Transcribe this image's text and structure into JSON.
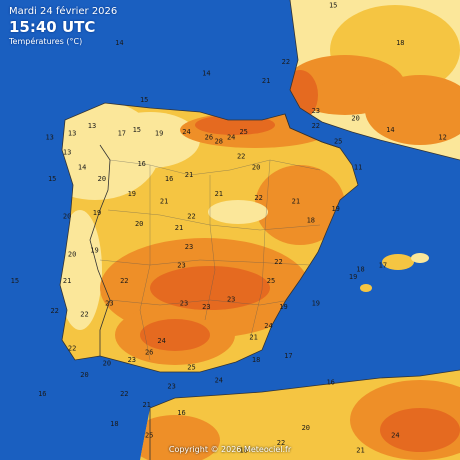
{
  "header": {
    "date": "Mardi 24 février 2026",
    "time": "15:40 UTC",
    "subtitle": "Températures (°C)"
  },
  "copyright": "Copyright © 2026 Meteociel.fr",
  "colors": {
    "sea": "#1a5fc0",
    "t_pale": "#fbe79a",
    "t_yellow": "#f5c542",
    "t_orange": "#ee8f28",
    "t_deep": "#e56a20",
    "t_red": "#dd4a1c",
    "border": "#333333",
    "label": "#1a1a1a"
  },
  "stations": [
    {
      "t": "13",
      "lon": -9.3,
      "lat": 43.3
    },
    {
      "t": "13",
      "lon": -8.4,
      "lat": 43.4
    },
    {
      "t": "13",
      "lon": -7.6,
      "lat": 43.6
    },
    {
      "t": "13",
      "lon": -8.6,
      "lat": 42.9
    },
    {
      "t": "14",
      "lon": -8.0,
      "lat": 42.5
    },
    {
      "t": "20",
      "lon": -7.2,
      "lat": 42.2
    },
    {
      "t": "17",
      "lon": -6.4,
      "lat": 43.4
    },
    {
      "t": "15",
      "lon": -5.8,
      "lat": 43.5
    },
    {
      "t": "19",
      "lon": -4.9,
      "lat": 43.4
    },
    {
      "t": "24",
      "lon": -3.8,
      "lat": 43.45
    },
    {
      "t": "26",
      "lon": -2.9,
      "lat": 43.3
    },
    {
      "t": "28",
      "lon": -2.5,
      "lat": 43.2
    },
    {
      "t": "24",
      "lon": -2.0,
      "lat": 43.3
    },
    {
      "t": "25",
      "lon": -1.5,
      "lat": 43.45
    },
    {
      "t": "22",
      "lon": -1.6,
      "lat": 42.8
    },
    {
      "t": "20",
      "lon": -1.0,
      "lat": 42.5
    },
    {
      "t": "16",
      "lon": -5.6,
      "lat": 42.6
    },
    {
      "t": "16",
      "lon": -4.5,
      "lat": 42.2
    },
    {
      "t": "21",
      "lon": -3.7,
      "lat": 42.3
    },
    {
      "t": "19",
      "lon": -6.0,
      "lat": 41.8
    },
    {
      "t": "21",
      "lon": -4.7,
      "lat": 41.6
    },
    {
      "t": "22",
      "lon": -3.6,
      "lat": 41.2
    },
    {
      "t": "21",
      "lon": -2.5,
      "lat": 41.8
    },
    {
      "t": "22",
      "lon": -0.9,
      "lat": 41.7
    },
    {
      "t": "21",
      "lon": 0.6,
      "lat": 41.6
    },
    {
      "t": "19",
      "lon": 2.2,
      "lat": 41.4
    },
    {
      "t": "18",
      "lon": 1.2,
      "lat": 41.1
    },
    {
      "t": "22",
      "lon": -0.1,
      "lat": 40.0
    },
    {
      "t": "25",
      "lon": -0.4,
      "lat": 39.5
    },
    {
      "t": "24",
      "lon": -0.5,
      "lat": 38.3
    },
    {
      "t": "19",
      "lon": 0.1,
      "lat": 38.8
    },
    {
      "t": "21",
      "lon": -1.1,
      "lat": 38.0
    },
    {
      "t": "23",
      "lon": -2.0,
      "lat": 39.0
    },
    {
      "t": "23",
      "lon": -3.7,
      "lat": 40.4
    },
    {
      "t": "21",
      "lon": -4.1,
      "lat": 40.9
    },
    {
      "t": "20",
      "lon": -5.7,
      "lat": 41.0
    },
    {
      "t": "22",
      "lon": -6.3,
      "lat": 39.5
    },
    {
      "t": "23",
      "lon": -4.0,
      "lat": 39.9
    },
    {
      "t": "23",
      "lon": -3.9,
      "lat": 38.9
    },
    {
      "t": "23",
      "lon": -3.0,
      "lat": 38.8
    },
    {
      "t": "24",
      "lon": -4.8,
      "lat": 37.9
    },
    {
      "t": "26",
      "lon": -5.3,
      "lat": 37.6
    },
    {
      "t": "23",
      "lon": -6.0,
      "lat": 37.4
    },
    {
      "t": "25",
      "lon": -3.6,
      "lat": 37.2
    },
    {
      "t": "24",
      "lon": -2.5,
      "lat": 36.85
    },
    {
      "t": "23",
      "lon": -4.4,
      "lat": 36.7
    },
    {
      "t": "22",
      "lon": -6.3,
      "lat": 36.5
    },
    {
      "t": "21",
      "lon": -5.4,
      "lat": 36.2
    },
    {
      "t": "20",
      "lon": -7.0,
      "lat": 37.3
    },
    {
      "t": "23",
      "lon": -6.9,
      "lat": 38.9
    },
    {
      "t": "22",
      "lon": -7.9,
      "lat": 38.6
    },
    {
      "t": "22",
      "lon": -8.4,
      "lat": 37.7
    },
    {
      "t": "20",
      "lon": -7.9,
      "lat": 37.0
    },
    {
      "t": "22",
      "lon": -9.1,
      "lat": 38.7
    },
    {
      "t": "21",
      "lon": -8.6,
      "lat": 39.5
    },
    {
      "t": "20",
      "lon": -8.4,
      "lat": 40.2
    },
    {
      "t": "20",
      "lon": -8.6,
      "lat": 41.2
    },
    {
      "t": "19",
      "lon": -7.4,
      "lat": 41.3
    },
    {
      "t": "19",
      "lon": -7.5,
      "lat": 40.3
    },
    {
      "t": "15",
      "lon": -9.2,
      "lat": 42.2
    },
    {
      "t": "15",
      "lon": -10.7,
      "lat": 39.5
    },
    {
      "t": "16",
      "lon": -9.6,
      "lat": 36.5
    },
    {
      "t": "16",
      "lon": -4.0,
      "lat": 36.0
    },
    {
      "t": "18",
      "lon": -1.0,
      "lat": 37.4
    },
    {
      "t": "17",
      "lon": 0.3,
      "lat": 37.5
    },
    {
      "t": "16",
      "lon": 2.0,
      "lat": 36.8
    },
    {
      "t": "19",
      "lon": 2.9,
      "lat": 39.6
    },
    {
      "t": "18",
      "lon": 3.2,
      "lat": 39.8
    },
    {
      "t": "17",
      "lon": 4.1,
      "lat": 39.9
    },
    {
      "t": "19",
      "lon": 1.4,
      "lat": 38.9
    },
    {
      "t": "14",
      "lon": -3.0,
      "lat": 45.0
    },
    {
      "t": "14",
      "lon": -6.5,
      "lat": 45.8
    },
    {
      "t": "15",
      "lon": -5.5,
      "lat": 44.3
    },
    {
      "t": "21",
      "lon": -0.6,
      "lat": 44.8
    },
    {
      "t": "22",
      "lon": 0.2,
      "lat": 45.3
    },
    {
      "t": "23",
      "lon": 1.4,
      "lat": 44.0
    },
    {
      "t": "22",
      "lon": 1.4,
      "lat": 43.6
    },
    {
      "t": "25",
      "lon": 2.3,
      "lat": 43.2
    },
    {
      "t": "20",
      "lon": 3.0,
      "lat": 43.8
    },
    {
      "t": "18",
      "lon": 4.8,
      "lat": 45.8
    },
    {
      "t": "15",
      "lon": 2.1,
      "lat": 46.8
    },
    {
      "t": "11",
      "lon": 3.1,
      "lat": 42.5
    },
    {
      "t": "14",
      "lon": 4.4,
      "lat": 43.5
    },
    {
      "t": "12",
      "lon": 6.5,
      "lat": 43.3
    },
    {
      "t": "20",
      "lon": 1.0,
      "lat": 35.6
    },
    {
      "t": "22",
      "lon": 0.0,
      "lat": 35.2
    },
    {
      "t": "18",
      "lon": -1.5,
      "lat": 35.0
    },
    {
      "t": "24",
      "lon": 4.6,
      "lat": 35.4
    },
    {
      "t": "21",
      "lon": 3.2,
      "lat": 35.0
    },
    {
      "t": "25",
      "lon": -5.3,
      "lat": 35.4
    },
    {
      "t": "18",
      "lon": -6.7,
      "lat": 35.7
    }
  ]
}
